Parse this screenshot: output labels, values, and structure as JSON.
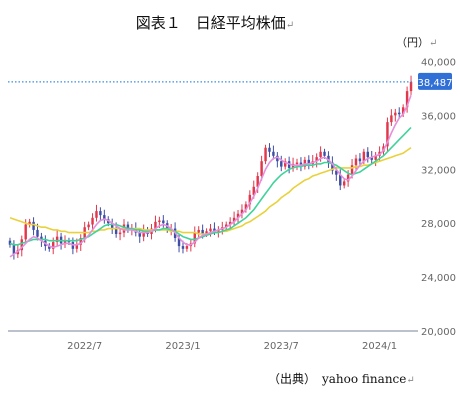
{
  "title": "図表１　日経平均株価",
  "unit_label": "（円）",
  "source_label": "（出典）　yahoo finance",
  "return_mark": "↵",
  "colors": {
    "up": "#e2374b",
    "down": "#3e4fa5",
    "ma_short": "#e48fdc",
    "ma_mid": "#3fd39a",
    "ma_long": "#e9d13b",
    "price_line": "#3a8de0",
    "price_badge": "#2f6fd6",
    "axis": "#7a8599"
  },
  "chart_data": {
    "type": "candlestick",
    "title": "日経平均株価",
    "ylabel": "円",
    "ylim": [
      20000,
      41000
    ],
    "y_ticks": [
      "20,000",
      "24,000",
      "28,000",
      "32,000",
      "36,000",
      "40,000"
    ],
    "y_tick_values": [
      20000,
      24000,
      28000,
      32000,
      36000,
      40000
    ],
    "x_ticks": [
      "2022/7",
      "2023/1",
      "2023/7",
      "2024/1"
    ],
    "x_tick_index": [
      19,
      44,
      69,
      94
    ],
    "current_price_label": "38,487",
    "current_price": 38487,
    "grid": false,
    "closes": [
      26400,
      25700,
      26000,
      26800,
      27900,
      28100,
      27500,
      27000,
      26700,
      26300,
      26100,
      26600,
      27000,
      26500,
      26700,
      26600,
      26100,
      26400,
      26900,
      27700,
      27900,
      28400,
      28900,
      28600,
      28300,
      28000,
      27600,
      27200,
      27300,
      27900,
      27500,
      27600,
      27300,
      27000,
      27500,
      27200,
      27600,
      28100,
      28200,
      28000,
      27500,
      27600,
      26900,
      26300,
      26100,
      26300,
      26500,
      27300,
      27500,
      27200,
      27400,
      27600,
      27400,
      27500,
      27700,
      27900,
      28100,
      28400,
      28700,
      29000,
      29400,
      30100,
      30700,
      31500,
      32600,
      33600,
      33300,
      33000,
      32600,
      32200,
      32600,
      32100,
      32400,
      32500,
      32200,
      32700,
      32400,
      32600,
      32900,
      33300,
      33000,
      32500,
      31900,
      31600,
      30800,
      31100,
      31600,
      32300,
      32800,
      32600,
      33300,
      32900,
      32700,
      33000,
      33300,
      33700,
      35500,
      36000,
      36200,
      36100,
      36600,
      37800,
      38487
    ],
    "ma_short": [
      25500,
      25700,
      25900,
      26200,
      26500,
      26800,
      27000,
      26900,
      26700,
      26500,
      26300,
      26200,
      26300,
      26400,
      26500,
      26500,
      26400,
      26400,
      26500,
      26800,
      27100,
      27500,
      27900,
      28200,
      28300,
      28200,
      28000,
      27800,
      27600,
      27500,
      27500,
      27500,
      27400,
      27300,
      27300,
      27300,
      27400,
      27600,
      27800,
      27900,
      27800,
      27600,
      27300,
      26900,
      26600,
      26400,
      26400,
      26600,
      26900,
      27100,
      27200,
      27300,
      27400,
      27500,
      27600,
      27700,
      27900,
      28100,
      28400,
      28700,
      29000,
      29500,
      30000,
      30600,
      31300,
      32000,
      32500,
      32800,
      32900,
      32700,
      32500,
      32400,
      32300,
      32300,
      32300,
      32400,
      32400,
      32500,
      32600,
      32800,
      32900,
      32700,
      32400,
      32000,
      31600,
      31300,
      31200,
      31500,
      31900,
      32300,
      32600,
      32800,
      32900,
      33000,
      33100,
      33400,
      34000,
      34700,
      35300,
      35800,
      36100,
      36700,
      37500
    ],
    "ma_mid": [
      26500,
      26400,
      26400,
      26500,
      26600,
      26700,
      26800,
      26800,
      26800,
      26800,
      26700,
      26700,
      26700,
      26700,
      26700,
      26700,
      26700,
      26700,
      26800,
      26900,
      27000,
      27200,
      27400,
      27600,
      27800,
      27900,
      27900,
      27900,
      27800,
      27700,
      27600,
      27600,
      27500,
      27500,
      27400,
      27400,
      27400,
      27500,
      27500,
      27600,
      27600,
      27500,
      27400,
      27200,
      27000,
      26900,
      26800,
      26800,
      26900,
      27000,
      27100,
      27200,
      27300,
      27300,
      27400,
      27500,
      27600,
      27800,
      28000,
      28200,
      28400,
      28700,
      29000,
      29400,
      29800,
      30200,
      30600,
      31000,
      31300,
      31600,
      31800,
      32000,
      32100,
      32200,
      32200,
      32300,
      32300,
      32300,
      32400,
      32400,
      32500,
      32500,
      32400,
      32300,
      32100,
      31900,
      31700,
      31600,
      31700,
      31800,
      32000,
      32200,
      32400,
      32600,
      32800,
      33000,
      33300,
      33600,
      33900,
      34200,
      34500,
      34800,
      35100
    ],
    "ma_long": [
      28400,
      28300,
      28200,
      28100,
      28000,
      27900,
      27900,
      27800,
      27700,
      27700,
      27600,
      27500,
      27500,
      27400,
      27400,
      27300,
      27300,
      27300,
      27300,
      27300,
      27300,
      27400,
      27400,
      27500,
      27500,
      27600,
      27600,
      27600,
      27600,
      27600,
      27600,
      27600,
      27600,
      27600,
      27500,
      27500,
      27500,
      27500,
      27500,
      27500,
      27500,
      27400,
      27400,
      27400,
      27300,
      27300,
      27300,
      27300,
      27200,
      27200,
      27200,
      27300,
      27300,
      27300,
      27400,
      27400,
      27500,
      27600,
      27700,
      27800,
      28000,
      28100,
      28300,
      28500,
      28700,
      28900,
      29200,
      29400,
      29600,
      29900,
      30100,
      30300,
      30600,
      30800,
      31000,
      31200,
      31300,
      31500,
      31600,
      31700,
      31800,
      31900,
      32000,
      32100,
      32100,
      32100,
      32100,
      32100,
      32200,
      32200,
      32300,
      32300,
      32400,
      32500,
      32600,
      32700,
      32800,
      32900,
      33000,
      33100,
      33200,
      33400,
      33600
    ]
  }
}
